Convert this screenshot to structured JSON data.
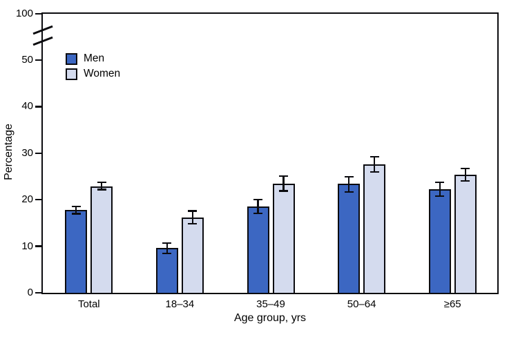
{
  "figure": {
    "background": "#ffffff",
    "frame_color": "#0b0b0f"
  },
  "chart_data": {
    "type": "bar",
    "title": "",
    "xlabel": "Age group, yrs",
    "ylabel": "Percentage",
    "categories": [
      "Total",
      "18–34",
      "35–49",
      "50–64",
      "≥65"
    ],
    "series": [
      {
        "name": "Men",
        "color": "#3c67c2",
        "values": [
          17.8,
          9.6,
          18.6,
          23.4,
          22.2
        ],
        "ci_low": [
          17.0,
          8.5,
          17.1,
          21.7,
          20.8
        ],
        "ci_high": [
          18.6,
          10.7,
          20.1,
          25.0,
          23.7
        ]
      },
      {
        "name": "Women",
        "color": "#d4dbee",
        "values": [
          22.9,
          16.2,
          23.5,
          27.6,
          25.4
        ],
        "ci_low": [
          22.2,
          14.8,
          21.9,
          26.0,
          24.0
        ],
        "ci_high": [
          23.7,
          17.6,
          25.1,
          29.2,
          26.7
        ]
      }
    ],
    "y_ticks": [
      0,
      10,
      20,
      30,
      40,
      50,
      100
    ],
    "y_tick_labels": [
      "0",
      "10",
      "20",
      "30",
      "40",
      "50",
      "100"
    ],
    "ylim_display": [
      0,
      50
    ],
    "axis_break": {
      "between": [
        50,
        100
      ]
    },
    "legend_position": "top-left",
    "grid": false,
    "bar_border_color": "#0b0b0f",
    "error_bar_color": "#0b0b0f"
  }
}
